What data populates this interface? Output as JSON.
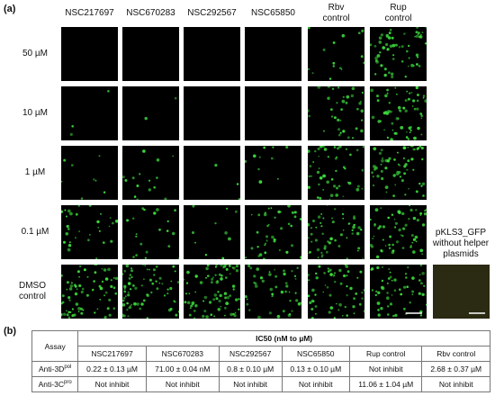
{
  "panel_a": {
    "label": "(a)",
    "columns": [
      "NSC217697",
      "NSC670283",
      "NSC292567",
      "NSC65850",
      "Rbv control",
      "Rup control"
    ],
    "rows": [
      "50 µM",
      "10 µM",
      "1 µM",
      "0.1 µM",
      "DMSO control"
    ],
    "extra_panel_label": "pKLS3_GFP without helper plasmids"
  },
  "panel_b": {
    "label": "(b)",
    "table": {
      "corner": "Assay",
      "group_header": "IC50 (nM to µM)",
      "columns": [
        "NSC217697",
        "NSC670283",
        "NSC292567",
        "NSC65850",
        "Rup control",
        "Rbv control"
      ],
      "rows": [
        {
          "assay": {
            "name": "Anti-3D",
            "sup": "pol"
          },
          "cells": [
            "0.22 ± 0.13 µM",
            "71.00 ± 0.04 nM",
            "0.8 ± 0.10 µM",
            "0.13 ± 0.10 µM",
            "Not inhibit",
            "2.68 ± 0.37 µM"
          ]
        },
        {
          "assay": {
            "name": "Anti-3C",
            "sup": "pro"
          },
          "cells": [
            "Not inhibit",
            "Not inhibit",
            "Not inhibit",
            "Not inhibit",
            "11.06 ± 1.04 µM",
            "Not inhibit"
          ]
        }
      ]
    }
  }
}
